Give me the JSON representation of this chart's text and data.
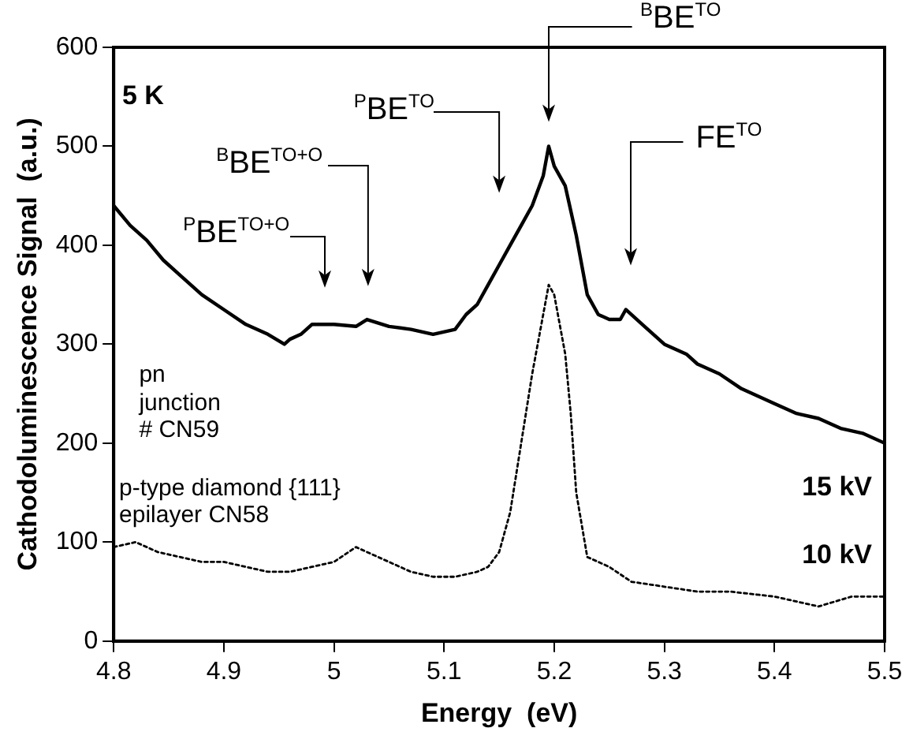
{
  "chart_data": {
    "type": "line",
    "xlabel": "Energy  (eV)",
    "ylabel": "Cathodoluminescence Signal  (a.u.)",
    "xlim": [
      4.8,
      5.5
    ],
    "xticks": [
      4.8,
      4.9,
      5,
      5.1,
      5.2,
      5.3,
      5.4,
      5.5
    ],
    "ylim": [
      0,
      600
    ],
    "yticks": [
      0,
      100,
      200,
      300,
      400,
      500,
      600
    ],
    "grid": false,
    "legend": false,
    "marker": "none",
    "series": [
      {
        "name": "15 kV",
        "color": "#000000",
        "line_style": "solid",
        "x": [
          4.8,
          4.815,
          4.83,
          4.845,
          4.86,
          4.88,
          4.9,
          4.92,
          4.94,
          4.955,
          4.96,
          4.97,
          4.98,
          5.0,
          5.02,
          5.03,
          5.05,
          5.07,
          5.09,
          5.11,
          5.12,
          5.13,
          5.14,
          5.15,
          5.16,
          5.17,
          5.18,
          5.19,
          5.195,
          5.2,
          5.21,
          5.22,
          5.23,
          5.24,
          5.25,
          5.26,
          5.265,
          5.28,
          5.3,
          5.32,
          5.33,
          5.35,
          5.37,
          5.4,
          5.42,
          5.44,
          5.46,
          5.48,
          5.5
        ],
        "values": [
          440,
          420,
          405,
          385,
          370,
          350,
          335,
          320,
          310,
          300,
          305,
          310,
          320,
          320,
          318,
          325,
          318,
          315,
          310,
          315,
          330,
          340,
          360,
          380,
          400,
          420,
          440,
          470,
          500,
          480,
          460,
          410,
          350,
          330,
          325,
          325,
          335,
          320,
          300,
          290,
          280,
          270,
          255,
          240,
          230,
          225,
          215,
          210,
          200
        ]
      },
      {
        "name": "10 kV",
        "color": "#000000",
        "line_style": "dotted",
        "x": [
          4.8,
          4.82,
          4.84,
          4.86,
          4.88,
          4.9,
          4.92,
          4.94,
          4.96,
          4.98,
          5.0,
          5.02,
          5.03,
          5.05,
          5.07,
          5.09,
          5.11,
          5.13,
          5.14,
          5.15,
          5.16,
          5.17,
          5.18,
          5.19,
          5.195,
          5.2,
          5.205,
          5.21,
          5.215,
          5.22,
          5.23,
          5.25,
          5.27,
          5.3,
          5.33,
          5.36,
          5.4,
          5.44,
          5.47,
          5.5
        ],
        "values": [
          95,
          100,
          90,
          85,
          80,
          80,
          75,
          70,
          70,
          75,
          80,
          95,
          90,
          80,
          70,
          65,
          65,
          70,
          75,
          90,
          130,
          200,
          270,
          330,
          360,
          350,
          320,
          290,
          230,
          150,
          85,
          75,
          60,
          55,
          50,
          50,
          45,
          35,
          45,
          45
        ]
      }
    ],
    "annotations": [
      "5 K",
      "pn junction # CN59",
      "p-type diamond {111} epilayer CN58",
      "$^{P}$BE$^{TO+O}$",
      "$^{B}$BE$^{TO+O}$",
      "$^{P}$BE$^{TO}$",
      "$^{B}$BE$^{TO}$",
      "FE$^{TO}$"
    ]
  }
}
